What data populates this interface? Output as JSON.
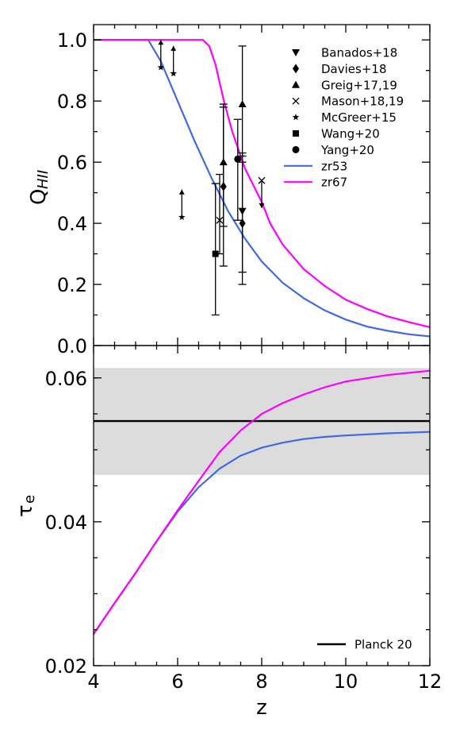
{
  "chart_data": [
    {
      "type": "scatter",
      "panel": "top",
      "xlabel": "",
      "ylabel_main": "Q",
      "ylabel_sub": "HII",
      "xlim": [
        4,
        12
      ],
      "ylim": [
        0.0,
        1.05
      ],
      "yticks": [
        0.0,
        0.2,
        0.4,
        0.6,
        0.8,
        1.0
      ],
      "ytick_labels": [
        "0.0",
        "0.2",
        "0.4",
        "0.6",
        "0.8",
        "1.0"
      ],
      "series": [
        {
          "name": "zr53",
          "kind": "line",
          "color": "#4169e1",
          "x": [
            4.0,
            5.0,
            5.3,
            5.6,
            6.0,
            6.4,
            6.8,
            7.2,
            7.6,
            8.0,
            8.5,
            9.0,
            9.5,
            10.0,
            10.5,
            11.0,
            11.5,
            12.0
          ],
          "y": [
            1.0,
            1.0,
            1.0,
            0.93,
            0.8,
            0.67,
            0.55,
            0.44,
            0.35,
            0.275,
            0.205,
            0.155,
            0.115,
            0.085,
            0.062,
            0.048,
            0.037,
            0.03
          ]
        },
        {
          "name": "zr67",
          "kind": "line",
          "color": "#ff00ff",
          "x": [
            4.0,
            6.0,
            6.6,
            6.75,
            6.9,
            7.1,
            7.3,
            7.6,
            8.0,
            8.2,
            8.5,
            9.0,
            9.5,
            10.0,
            10.5,
            11.0,
            11.5,
            12.0
          ],
          "y": [
            1.0,
            1.0,
            1.0,
            0.98,
            0.92,
            0.8,
            0.7,
            0.58,
            0.47,
            0.4,
            0.33,
            0.25,
            0.195,
            0.15,
            0.12,
            0.095,
            0.077,
            0.06
          ]
        },
        {
          "name": "Banados+18",
          "kind": "marker",
          "marker": "tri-down",
          "points": [
            {
              "x": 7.54,
              "y": 0.44,
              "yerr": [
                0.2,
                0.18
              ]
            }
          ]
        },
        {
          "name": "Davies+18",
          "kind": "marker",
          "marker": "diamond",
          "points": [
            {
              "x": 7.09,
              "y": 0.52,
              "yerr": [
                0.26,
                0.26
              ]
            },
            {
              "x": 7.54,
              "y": 0.4,
              "yerr": [
                0.2,
                0.23
              ]
            }
          ]
        },
        {
          "name": "Greig+17,19",
          "kind": "marker",
          "marker": "tri-up",
          "points": [
            {
              "x": 7.09,
              "y": 0.6,
              "yerr": [
                0.21,
                0.19
              ]
            },
            {
              "x": 7.54,
              "y": 0.79,
              "yerr": [
                0.19,
                0.19
              ]
            }
          ]
        },
        {
          "name": "Mason+18,19",
          "kind": "marker",
          "marker": "x",
          "points": [
            {
              "x": 7.0,
              "y": 0.41,
              "yerr": [
                0.11,
                0.15
              ]
            },
            {
              "x": 8.0,
              "y": 0.54,
              "limit": "upper",
              "arrow_to": 0.45
            }
          ]
        },
        {
          "name": "McGreer+15",
          "kind": "marker",
          "marker": "star",
          "points": [
            {
              "x": 5.6,
              "y": 0.91,
              "limit": "lower",
              "arrow_to": 1.0
            },
            {
              "x": 5.9,
              "y": 0.89,
              "limit": "lower",
              "arrow_to": 0.98
            },
            {
              "x": 6.1,
              "y": 0.42,
              "limit": "lower",
              "arrow_to": 0.51
            }
          ]
        },
        {
          "name": "Wang+20",
          "kind": "marker",
          "marker": "square",
          "points": [
            {
              "x": 6.9,
              "y": 0.3,
              "yerr": [
                0.2,
                0.23
              ]
            }
          ]
        },
        {
          "name": "Yang+20",
          "kind": "marker",
          "marker": "circle",
          "points": [
            {
              "x": 7.43,
              "y": 0.61,
              "yerr": [
                0.2,
                0.13
              ]
            }
          ]
        }
      ]
    },
    {
      "type": "line",
      "panel": "bottom",
      "xlabel": "z",
      "ylabel": "τe",
      "ylabel_main": "τ",
      "ylabel_sub": "e",
      "xlim": [
        4,
        12
      ],
      "ylim": [
        0.02,
        0.0645
      ],
      "xticks": [
        4,
        6,
        8,
        10,
        12
      ],
      "xtick_labels": [
        "4",
        "6",
        "8",
        "10",
        "12"
      ],
      "yticks": [
        0.02,
        0.04,
        0.06
      ],
      "ytick_labels": [
        "0.02",
        "0.04",
        "0.06"
      ],
      "band": {
        "y0": 0.0466,
        "y1": 0.0613,
        "color": "#dcdcdc"
      },
      "series": [
        {
          "name": "Planck 20",
          "kind": "hline",
          "color": "#000000",
          "y": 0.054
        },
        {
          "name": "zr53",
          "kind": "line",
          "color": "#4169e1",
          "x": [
            4.0,
            4.5,
            5.0,
            5.5,
            6.0,
            6.5,
            7.0,
            7.5,
            8.0,
            8.5,
            9.0,
            9.5,
            10.0,
            11.0,
            12.0
          ],
          "y": [
            0.0244,
            0.0287,
            0.0329,
            0.0373,
            0.0414,
            0.0448,
            0.0474,
            0.0492,
            0.0503,
            0.051,
            0.0515,
            0.0518,
            0.052,
            0.0523,
            0.0525
          ]
        },
        {
          "name": "zr67",
          "kind": "line",
          "color": "#ff00ff",
          "x": [
            4.0,
            4.5,
            5.0,
            5.5,
            6.0,
            6.5,
            7.0,
            7.5,
            8.0,
            8.5,
            9.0,
            9.5,
            10.0,
            11.0,
            12.0
          ],
          "y": [
            0.0244,
            0.0287,
            0.0329,
            0.0373,
            0.0416,
            0.0457,
            0.0497,
            0.0527,
            0.055,
            0.0565,
            0.0577,
            0.0587,
            0.0595,
            0.0604,
            0.061
          ]
        }
      ]
    }
  ],
  "legend_top": [
    "Banados+18",
    "Davies+18",
    "Greig+17,19",
    "Mason+18,19",
    "McGreer+15",
    "Wang+20",
    "Yang+20",
    "zr53",
    "zr67"
  ],
  "legend_bottom": [
    "Planck 20"
  ]
}
